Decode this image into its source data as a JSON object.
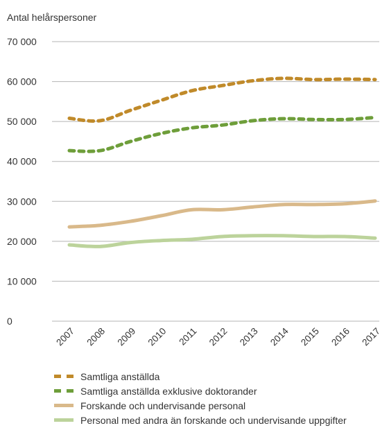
{
  "chart_data": {
    "type": "line",
    "title": "",
    "ylabel": "Antal helårspersoner",
    "xlabel": "",
    "ylim": [
      0,
      70000
    ],
    "yticks": [
      0,
      10000,
      20000,
      30000,
      40000,
      50000,
      60000,
      70000
    ],
    "ytick_labels": [
      "0",
      "10 000",
      "20 000",
      "30 000",
      "40 000",
      "50 000",
      "60 000",
      "70 000"
    ],
    "categories": [
      "2007",
      "2008",
      "2009",
      "2010",
      "2011",
      "2012",
      "2013",
      "2014",
      "2015",
      "2016",
      "2017"
    ],
    "grid": "horizontal",
    "legend_position": "bottom",
    "series": [
      {
        "name": "Samtliga anställda",
        "color": "#c08a2a",
        "style": "dashed",
        "values": [
          50800,
          50200,
          52800,
          55300,
          57700,
          59000,
          60200,
          60800,
          60500,
          60600,
          60500
        ]
      },
      {
        "name": "Samtliga anställda exklusive doktorander",
        "color": "#6e9e3a",
        "style": "dashed",
        "values": [
          42700,
          42700,
          45000,
          47000,
          48400,
          49100,
          50200,
          50700,
          50500,
          50500,
          51000
        ]
      },
      {
        "name": "Forskande och undervisande personal",
        "color": "#d9b98a",
        "style": "solid",
        "values": [
          23600,
          24000,
          25000,
          26400,
          27900,
          27900,
          28600,
          29200,
          29200,
          29400,
          30100
        ]
      },
      {
        "name": "Personal med andra än forskande och undervisande uppgifter",
        "color": "#bcd39b",
        "style": "solid",
        "values": [
          19100,
          18700,
          19700,
          20200,
          20500,
          21200,
          21400,
          21400,
          21200,
          21200,
          20800
        ]
      }
    ]
  }
}
